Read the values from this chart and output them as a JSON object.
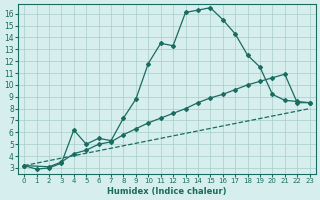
{
  "xlabel": "Humidex (Indice chaleur)",
  "xlim": [
    -0.5,
    23.5
  ],
  "ylim": [
    2.5,
    16.8
  ],
  "xticks": [
    0,
    1,
    2,
    3,
    4,
    5,
    6,
    7,
    8,
    9,
    10,
    11,
    12,
    13,
    14,
    15,
    16,
    17,
    18,
    19,
    20,
    21,
    22,
    23
  ],
  "yticks": [
    3,
    4,
    5,
    6,
    7,
    8,
    9,
    10,
    11,
    12,
    13,
    14,
    15,
    16
  ],
  "bg_color": "#d6efee",
  "grid_color": "#a8ccc8",
  "line_color": "#1a6b60",
  "line1_x": [
    0,
    1,
    2,
    3,
    4,
    5,
    6,
    7,
    8,
    9,
    10,
    11,
    12,
    13,
    14,
    15,
    16,
    17,
    18,
    19,
    20,
    21,
    22,
    23
  ],
  "line1_y": [
    3.2,
    2.9,
    3.0,
    3.4,
    6.2,
    5.0,
    5.5,
    5.3,
    7.2,
    8.8,
    11.8,
    13.5,
    13.3,
    16.1,
    16.3,
    16.5,
    15.5,
    14.3,
    12.5,
    11.5,
    9.2,
    8.7,
    8.6,
    8.5
  ],
  "line2_x": [
    0,
    2,
    3,
    4,
    5,
    6,
    7,
    8,
    9,
    10,
    11,
    12,
    13,
    14,
    15,
    16,
    17,
    18,
    19,
    20,
    21,
    22,
    23
  ],
  "line2_y": [
    3.2,
    3.1,
    3.5,
    4.2,
    4.5,
    5.0,
    5.2,
    5.8,
    6.3,
    6.8,
    7.2,
    7.6,
    8.0,
    8.5,
    8.9,
    9.2,
    9.6,
    10.0,
    10.3,
    10.6,
    10.9,
    8.5,
    8.5
  ],
  "line3_x": [
    0,
    23
  ],
  "line3_y": [
    3.2,
    8.0
  ]
}
